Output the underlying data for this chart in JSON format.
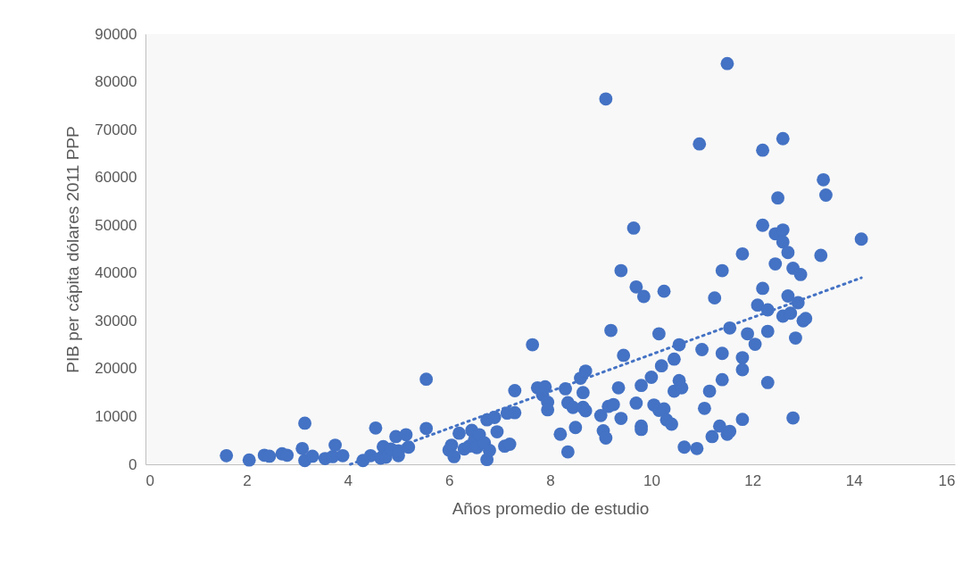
{
  "chart_data": {
    "type": "scatter",
    "xlabel": "Años promedio de estudio",
    "ylabel": "PIB per cápita dólares 2011 PPP",
    "xlim": [
      0,
      16
    ],
    "xticks": [
      0,
      2,
      4,
      6,
      8,
      10,
      12,
      14,
      16
    ],
    "ylim": [
      0,
      90000
    ],
    "yticks": [
      0,
      10000,
      20000,
      30000,
      40000,
      50000,
      60000,
      70000,
      80000,
      90000
    ],
    "grid": false,
    "series": [
      {
        "color": "#4472c4",
        "marker": "circle",
        "x": [
          1.6,
          2.05,
          2.35,
          2.45,
          2.7,
          2.8,
          3.1,
          3.15,
          3.15,
          3.3,
          3.55,
          3.7,
          3.75,
          3.9,
          4.3,
          4.45,
          4.55,
          4.65,
          4.7,
          4.75,
          4.85,
          4.95,
          5.0,
          5.0,
          5.15,
          5.2,
          5.55,
          5.55,
          6.0,
          6.05,
          6.1,
          6.2,
          6.3,
          6.4,
          6.45,
          6.5,
          6.55,
          6.6,
          6.7,
          6.75,
          6.75,
          6.8,
          6.9,
          6.95,
          7.1,
          7.15,
          7.2,
          7.3,
          7.3,
          7.65,
          7.75,
          7.85,
          7.9,
          7.95,
          7.95,
          8.2,
          8.3,
          8.35,
          8.35,
          8.45,
          8.5,
          8.6,
          8.65,
          8.65,
          8.7,
          8.7,
          9.0,
          9.05,
          9.1,
          9.1,
          9.15,
          9.2,
          9.25,
          9.35,
          9.4,
          9.4,
          9.45,
          9.65,
          9.7,
          9.7,
          9.8,
          9.8,
          9.8,
          9.85,
          10.0,
          10.05,
          10.15,
          10.15,
          10.2,
          10.25,
          10.25,
          10.3,
          10.4,
          10.45,
          10.45,
          10.55,
          10.55,
          10.6,
          10.65,
          10.9,
          10.95,
          11.0,
          11.05,
          11.15,
          11.2,
          11.25,
          11.35,
          11.4,
          11.4,
          11.4,
          11.5,
          11.5,
          11.55,
          11.55,
          11.8,
          11.8,
          11.8,
          11.8,
          11.9,
          12.05,
          12.1,
          12.2,
          12.2,
          12.2,
          12.3,
          12.3,
          12.3,
          12.45,
          12.45,
          12.5,
          12.6,
          12.6,
          12.6,
          12.6,
          12.7,
          12.7,
          12.75,
          12.8,
          12.85,
          12.8,
          12.9,
          12.95,
          13.0,
          13.05,
          13.35,
          13.4,
          13.45,
          14.15
        ],
        "values": [
          1800,
          900,
          1900,
          1700,
          2200,
          1900,
          3300,
          8600,
          800,
          1700,
          1200,
          1600,
          4000,
          1800,
          800,
          1800,
          7600,
          1300,
          3700,
          1500,
          3200,
          5800,
          1800,
          2800,
          6200,
          3600,
          17800,
          7500,
          3000,
          4000,
          1600,
          6500,
          3200,
          3800,
          7100,
          5000,
          3500,
          6200,
          4500,
          9300,
          1000,
          2900,
          9800,
          6800,
          3800,
          10700,
          4200,
          10800,
          15400,
          25000,
          16000,
          14500,
          16200,
          13000,
          11400,
          6300,
          15800,
          2600,
          12900,
          11900,
          7700,
          18000,
          15000,
          11900,
          19500,
          11200,
          10200,
          7000,
          76400,
          5500,
          12100,
          28000,
          12500,
          16000,
          9600,
          40500,
          22800,
          49400,
          37100,
          12800,
          16500,
          8000,
          7300,
          35100,
          18200,
          12400,
          11300,
          27300,
          20600,
          11600,
          36200,
          9300,
          8400,
          22000,
          15300,
          17500,
          25000,
          16000,
          3600,
          3300,
          67000,
          24000,
          11700,
          15300,
          5800,
          34800,
          8000,
          23200,
          40500,
          17700,
          83800,
          6300,
          28500,
          6900,
          44000,
          22300,
          19800,
          9400,
          27300,
          25100,
          33300,
          36800,
          65700,
          50000,
          32300,
          27800,
          17100,
          48200,
          41900,
          55700,
          68100,
          49000,
          46500,
          31000,
          44300,
          35200,
          31600,
          41000,
          26400,
          9700,
          33800,
          39700,
          30000,
          30500,
          43700,
          59500,
          56300,
          47100
        ]
      },
      {
        "type": "line",
        "color": "#4472c4",
        "line_style": "dotted",
        "x": [
          4.05,
          14.15
        ],
        "values": [
          0,
          39000
        ]
      }
    ]
  }
}
